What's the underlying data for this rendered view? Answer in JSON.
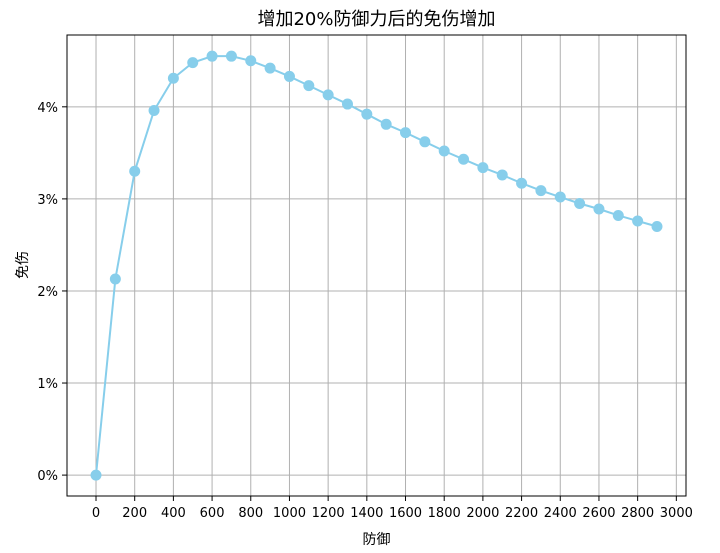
{
  "chart_data": {
    "type": "line",
    "title": "增加20%防御力后的免伤增加",
    "xlabel": "防御",
    "ylabel": "免伤",
    "xlim": [
      -150,
      3050
    ],
    "ylim": [
      -0.00227,
      0.0478
    ],
    "xticks": [
      0,
      200,
      400,
      600,
      800,
      1000,
      1200,
      1400,
      1600,
      1800,
      2000,
      2200,
      2400,
      2600,
      2800,
      3000
    ],
    "xtick_labels": [
      "0",
      "200",
      "400",
      "600",
      "800",
      "1000",
      "1200",
      "1400",
      "1600",
      "1800",
      "2000",
      "2200",
      "2400",
      "2600",
      "2800",
      "3000"
    ],
    "yticks": [
      0,
      0.01,
      0.02,
      0.03,
      0.04
    ],
    "ytick_labels": [
      "0%",
      "1%",
      "2%",
      "3%",
      "4%"
    ],
    "grid": true,
    "color": "#87ceeb",
    "series": [
      {
        "x": [
          0,
          100,
          200,
          300,
          400,
          500,
          600,
          700,
          800,
          900,
          1000,
          1100,
          1200,
          1300,
          1400,
          1500,
          1600,
          1700,
          1800,
          1900,
          2000,
          2100,
          2200,
          2300,
          2400,
          2500,
          2600,
          2700,
          2800,
          2900
        ],
        "y": [
          0.0,
          0.0213,
          0.033,
          0.0396,
          0.0431,
          0.0448,
          0.0455,
          0.0455,
          0.045,
          0.0442,
          0.0433,
          0.0423,
          0.0413,
          0.0403,
          0.0392,
          0.0381,
          0.0372,
          0.0362,
          0.0352,
          0.0343,
          0.0334,
          0.0326,
          0.0317,
          0.0309,
          0.0302,
          0.0295,
          0.0289,
          0.0282,
          0.0276,
          0.027
        ]
      }
    ]
  }
}
